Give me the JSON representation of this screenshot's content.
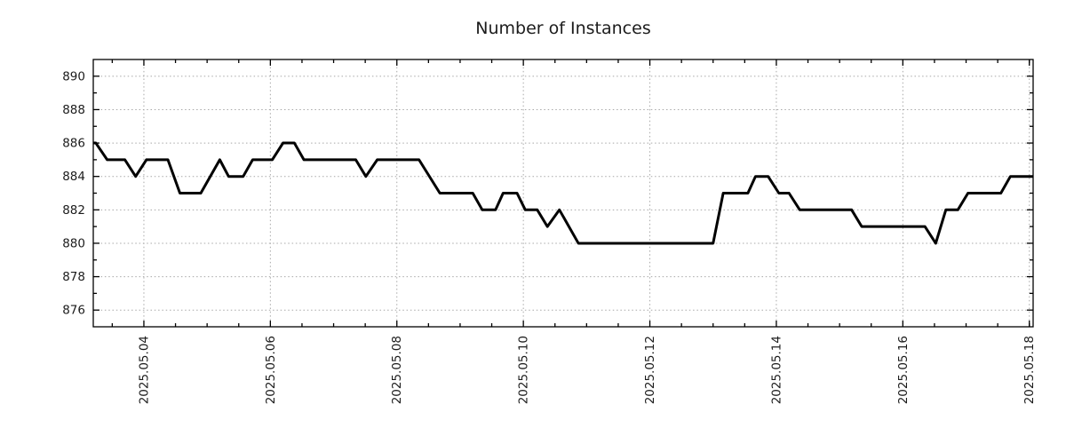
{
  "title": "Number of Instances",
  "styles": {
    "background": "#ffffff",
    "axis_color": "#000000",
    "grid_color": "#a8a8a8",
    "text_color": "#1c1c1c",
    "line_color": "#000000"
  },
  "chart_data": {
    "type": "line",
    "title": "Number of Instances",
    "xlabel": "",
    "ylabel": "",
    "x_unit": "day of May 2025",
    "xlim": [
      3.2,
      18.06
    ],
    "ylim": [
      875,
      891
    ],
    "grid": "dotted",
    "legend": null,
    "x_major_ticks": [
      4,
      6,
      8,
      10,
      12,
      14,
      16,
      18
    ],
    "x_tick_labels": [
      "2025.05.04",
      "2025.05.06",
      "2025.05.08",
      "2025.05.10",
      "2025.05.12",
      "2025.05.14",
      "2025.05.16",
      "2025.05.18"
    ],
    "x_minor_ticks": [
      3.5,
      4.5,
      5,
      5.5,
      6.5,
      7,
      7.5,
      8.5,
      9,
      9.5,
      10.5,
      11,
      11.5,
      12.5,
      13,
      13.5,
      14.5,
      15,
      15.5,
      16.5,
      17,
      17.5,
      18
    ],
    "y_major_ticks": [
      876,
      878,
      880,
      882,
      884,
      886,
      888,
      890
    ],
    "y_tick_labels": [
      "876",
      "878",
      "880",
      "882",
      "884",
      "886",
      "888",
      "890"
    ],
    "y_minor_ticks": [
      877,
      879,
      881,
      883,
      885,
      887,
      889
    ],
    "series": [
      {
        "name": "Number of Instances",
        "color": "#000000",
        "stroke_width": 3,
        "points": [
          [
            3.2,
            886
          ],
          [
            3.24,
            886
          ],
          [
            3.42,
            885
          ],
          [
            3.7,
            885
          ],
          [
            3.87,
            884
          ],
          [
            4.04,
            885
          ],
          [
            4.38,
            885
          ],
          [
            4.57,
            883
          ],
          [
            4.9,
            883
          ],
          [
            5.2,
            885
          ],
          [
            5.34,
            884
          ],
          [
            5.57,
            884
          ],
          [
            5.72,
            885
          ],
          [
            6.03,
            885
          ],
          [
            6.2,
            886
          ],
          [
            6.38,
            886
          ],
          [
            6.53,
            885
          ],
          [
            7.35,
            885
          ],
          [
            7.51,
            884
          ],
          [
            7.69,
            885
          ],
          [
            8.35,
            885
          ],
          [
            8.68,
            883
          ],
          [
            9.2,
            883
          ],
          [
            9.35,
            882
          ],
          [
            9.56,
            882
          ],
          [
            9.68,
            883
          ],
          [
            9.9,
            883
          ],
          [
            10.03,
            882
          ],
          [
            10.22,
            882
          ],
          [
            10.38,
            881
          ],
          [
            10.57,
            882
          ],
          [
            10.87,
            880
          ],
          [
            13.0,
            880
          ],
          [
            13.16,
            883
          ],
          [
            13.55,
            883
          ],
          [
            13.67,
            884
          ],
          [
            13.87,
            884
          ],
          [
            14.04,
            883
          ],
          [
            14.2,
            883
          ],
          [
            14.37,
            882
          ],
          [
            15.19,
            882
          ],
          [
            15.35,
            881
          ],
          [
            16.35,
            881
          ],
          [
            16.52,
            880
          ],
          [
            16.68,
            882
          ],
          [
            16.87,
            882
          ],
          [
            17.03,
            883
          ],
          [
            17.55,
            883
          ],
          [
            17.7,
            884
          ],
          [
            18.06,
            884
          ]
        ]
      }
    ]
  }
}
